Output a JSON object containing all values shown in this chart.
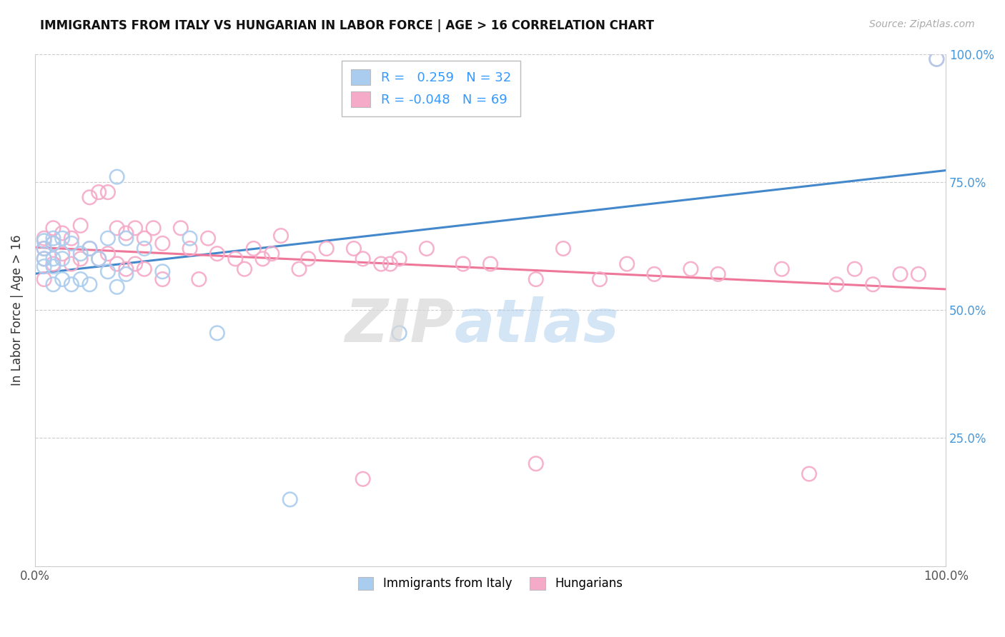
{
  "title": "IMMIGRANTS FROM ITALY VS HUNGARIAN IN LABOR FORCE | AGE > 16 CORRELATION CHART",
  "source": "Source: ZipAtlas.com",
  "ylabel": "In Labor Force | Age > 16",
  "xlim": [
    0,
    1.0
  ],
  "ylim": [
    0,
    1.0
  ],
  "italy_R": 0.259,
  "italy_N": 32,
  "hungarian_R": -0.048,
  "hungarian_N": 69,
  "italy_color": "#aaccee",
  "hungarian_color": "#f5aac8",
  "italy_line_color": "#4488cc",
  "hungarian_line_color": "#ee7799",
  "right_tick_color": "#4499dd",
  "italy_x": [
    0.01,
    0.01,
    0.01,
    0.01,
    0.02,
    0.02,
    0.02,
    0.02,
    0.02,
    0.03,
    0.03,
    0.03,
    0.04,
    0.04,
    0.05,
    0.05,
    0.06,
    0.06,
    0.07,
    0.08,
    0.08,
    0.09,
    0.09,
    0.1,
    0.1,
    0.12,
    0.14,
    0.17,
    0.2,
    0.28,
    0.4,
    0.99
  ],
  "italy_y": [
    0.635,
    0.62,
    0.6,
    0.585,
    0.64,
    0.63,
    0.6,
    0.585,
    0.55,
    0.64,
    0.6,
    0.56,
    0.63,
    0.55,
    0.61,
    0.56,
    0.62,
    0.55,
    0.6,
    0.64,
    0.575,
    0.76,
    0.545,
    0.64,
    0.57,
    0.62,
    0.575,
    0.64,
    0.455,
    0.13,
    0.455,
    0.99
  ],
  "hungarian_x": [
    0.01,
    0.01,
    0.01,
    0.01,
    0.02,
    0.02,
    0.02,
    0.03,
    0.03,
    0.04,
    0.04,
    0.05,
    0.05,
    0.06,
    0.06,
    0.07,
    0.07,
    0.08,
    0.08,
    0.09,
    0.09,
    0.1,
    0.1,
    0.11,
    0.11,
    0.12,
    0.12,
    0.13,
    0.14,
    0.14,
    0.16,
    0.17,
    0.18,
    0.19,
    0.2,
    0.22,
    0.23,
    0.24,
    0.25,
    0.26,
    0.27,
    0.29,
    0.3,
    0.32,
    0.35,
    0.36,
    0.38,
    0.39,
    0.4,
    0.43,
    0.47,
    0.5,
    0.55,
    0.58,
    0.62,
    0.65,
    0.68,
    0.72,
    0.75,
    0.82,
    0.85,
    0.88,
    0.9,
    0.92,
    0.95,
    0.97,
    0.99,
    0.36,
    0.55
  ],
  "hungarian_y": [
    0.64,
    0.62,
    0.6,
    0.56,
    0.66,
    0.63,
    0.59,
    0.65,
    0.61,
    0.64,
    0.59,
    0.665,
    0.6,
    0.72,
    0.62,
    0.73,
    0.6,
    0.73,
    0.61,
    0.66,
    0.59,
    0.65,
    0.58,
    0.66,
    0.59,
    0.64,
    0.58,
    0.66,
    0.63,
    0.56,
    0.66,
    0.62,
    0.56,
    0.64,
    0.61,
    0.6,
    0.58,
    0.62,
    0.6,
    0.61,
    0.645,
    0.58,
    0.6,
    0.62,
    0.62,
    0.6,
    0.59,
    0.59,
    0.6,
    0.62,
    0.59,
    0.59,
    0.56,
    0.62,
    0.56,
    0.59,
    0.57,
    0.58,
    0.57,
    0.58,
    0.18,
    0.55,
    0.58,
    0.55,
    0.57,
    0.57,
    0.99,
    0.17,
    0.2
  ]
}
